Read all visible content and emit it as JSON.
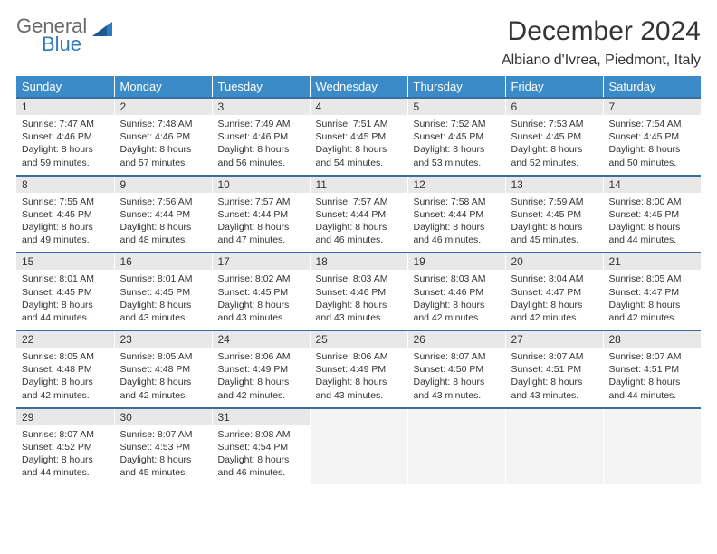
{
  "logo": {
    "part1": "General",
    "part2": "Blue"
  },
  "title": "December 2024",
  "location": "Albiano d'Ivrea, Piedmont, Italy",
  "colors": {
    "header_bg": "#3b8bc8",
    "row_border": "#3b6ea0",
    "daynum_bg": "#e8e8e8",
    "logo_gray": "#6a6a6a",
    "logo_blue": "#2f7bbf",
    "text": "#333333",
    "empty_bg": "#f4f4f4"
  },
  "weekdays": [
    "Sunday",
    "Monday",
    "Tuesday",
    "Wednesday",
    "Thursday",
    "Friday",
    "Saturday"
  ],
  "weeks": [
    [
      {
        "n": "1",
        "sunrise": "7:47 AM",
        "sunset": "4:46 PM",
        "daylight": "8 hours and 59 minutes."
      },
      {
        "n": "2",
        "sunrise": "7:48 AM",
        "sunset": "4:46 PM",
        "daylight": "8 hours and 57 minutes."
      },
      {
        "n": "3",
        "sunrise": "7:49 AM",
        "sunset": "4:46 PM",
        "daylight": "8 hours and 56 minutes."
      },
      {
        "n": "4",
        "sunrise": "7:51 AM",
        "sunset": "4:45 PM",
        "daylight": "8 hours and 54 minutes."
      },
      {
        "n": "5",
        "sunrise": "7:52 AM",
        "sunset": "4:45 PM",
        "daylight": "8 hours and 53 minutes."
      },
      {
        "n": "6",
        "sunrise": "7:53 AM",
        "sunset": "4:45 PM",
        "daylight": "8 hours and 52 minutes."
      },
      {
        "n": "7",
        "sunrise": "7:54 AM",
        "sunset": "4:45 PM",
        "daylight": "8 hours and 50 minutes."
      }
    ],
    [
      {
        "n": "8",
        "sunrise": "7:55 AM",
        "sunset": "4:45 PM",
        "daylight": "8 hours and 49 minutes."
      },
      {
        "n": "9",
        "sunrise": "7:56 AM",
        "sunset": "4:44 PM",
        "daylight": "8 hours and 48 minutes."
      },
      {
        "n": "10",
        "sunrise": "7:57 AM",
        "sunset": "4:44 PM",
        "daylight": "8 hours and 47 minutes."
      },
      {
        "n": "11",
        "sunrise": "7:57 AM",
        "sunset": "4:44 PM",
        "daylight": "8 hours and 46 minutes."
      },
      {
        "n": "12",
        "sunrise": "7:58 AM",
        "sunset": "4:44 PM",
        "daylight": "8 hours and 46 minutes."
      },
      {
        "n": "13",
        "sunrise": "7:59 AM",
        "sunset": "4:45 PM",
        "daylight": "8 hours and 45 minutes."
      },
      {
        "n": "14",
        "sunrise": "8:00 AM",
        "sunset": "4:45 PM",
        "daylight": "8 hours and 44 minutes."
      }
    ],
    [
      {
        "n": "15",
        "sunrise": "8:01 AM",
        "sunset": "4:45 PM",
        "daylight": "8 hours and 44 minutes."
      },
      {
        "n": "16",
        "sunrise": "8:01 AM",
        "sunset": "4:45 PM",
        "daylight": "8 hours and 43 minutes."
      },
      {
        "n": "17",
        "sunrise": "8:02 AM",
        "sunset": "4:45 PM",
        "daylight": "8 hours and 43 minutes."
      },
      {
        "n": "18",
        "sunrise": "8:03 AM",
        "sunset": "4:46 PM",
        "daylight": "8 hours and 43 minutes."
      },
      {
        "n": "19",
        "sunrise": "8:03 AM",
        "sunset": "4:46 PM",
        "daylight": "8 hours and 42 minutes."
      },
      {
        "n": "20",
        "sunrise": "8:04 AM",
        "sunset": "4:47 PM",
        "daylight": "8 hours and 42 minutes."
      },
      {
        "n": "21",
        "sunrise": "8:05 AM",
        "sunset": "4:47 PM",
        "daylight": "8 hours and 42 minutes."
      }
    ],
    [
      {
        "n": "22",
        "sunrise": "8:05 AM",
        "sunset": "4:48 PM",
        "daylight": "8 hours and 42 minutes."
      },
      {
        "n": "23",
        "sunrise": "8:05 AM",
        "sunset": "4:48 PM",
        "daylight": "8 hours and 42 minutes."
      },
      {
        "n": "24",
        "sunrise": "8:06 AM",
        "sunset": "4:49 PM",
        "daylight": "8 hours and 42 minutes."
      },
      {
        "n": "25",
        "sunrise": "8:06 AM",
        "sunset": "4:49 PM",
        "daylight": "8 hours and 43 minutes."
      },
      {
        "n": "26",
        "sunrise": "8:07 AM",
        "sunset": "4:50 PM",
        "daylight": "8 hours and 43 minutes."
      },
      {
        "n": "27",
        "sunrise": "8:07 AM",
        "sunset": "4:51 PM",
        "daylight": "8 hours and 43 minutes."
      },
      {
        "n": "28",
        "sunrise": "8:07 AM",
        "sunset": "4:51 PM",
        "daylight": "8 hours and 44 minutes."
      }
    ],
    [
      {
        "n": "29",
        "sunrise": "8:07 AM",
        "sunset": "4:52 PM",
        "daylight": "8 hours and 44 minutes."
      },
      {
        "n": "30",
        "sunrise": "8:07 AM",
        "sunset": "4:53 PM",
        "daylight": "8 hours and 45 minutes."
      },
      {
        "n": "31",
        "sunrise": "8:08 AM",
        "sunset": "4:54 PM",
        "daylight": "8 hours and 46 minutes."
      },
      null,
      null,
      null,
      null
    ]
  ]
}
